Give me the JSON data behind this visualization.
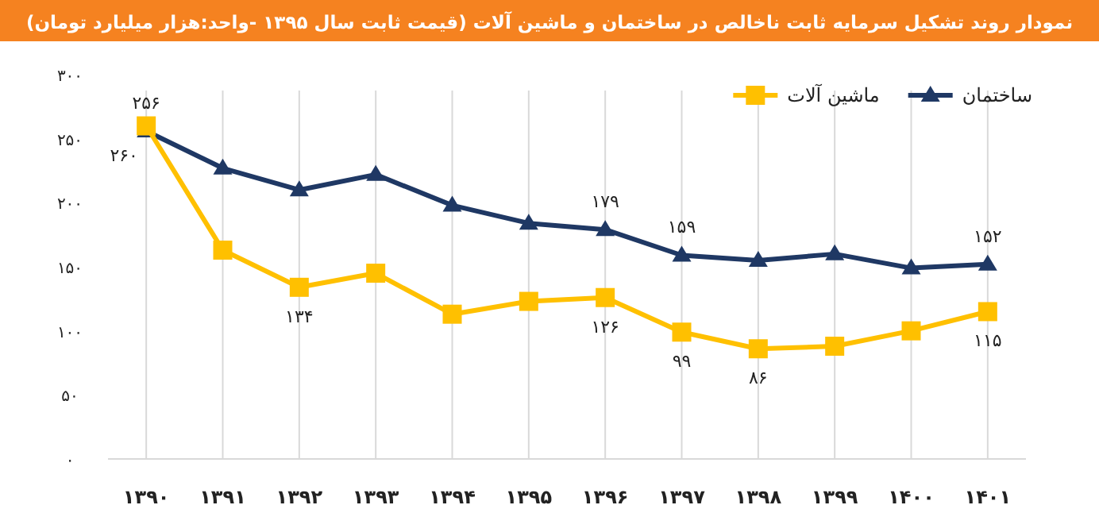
{
  "chart_data": {
    "type": "line",
    "title": "نمودار روند تشکیل سرمایه ثابت ناخالص در ساختمان و ماشین آلات (قیمت ثابت سال ۱۳۹۵ -واحد:هزار میلیارد تومان)",
    "categories": [
      "۱۳۹۰",
      "۱۳۹۱",
      "۱۳۹۲",
      "۱۳۹۳",
      "۱۳۹۴",
      "۱۳۹۵",
      "۱۳۹۶",
      "۱۳۹۷",
      "۱۳۹۸",
      "۱۳۹۹",
      "۱۴۰۰",
      "۱۴۰۱"
    ],
    "series": [
      {
        "name": "ساختمان",
        "color": "#1f3864",
        "marker": "triangle",
        "values": [
          256,
          227,
          210,
          222,
          198,
          184,
          179,
          159,
          155,
          160,
          149,
          152
        ],
        "value_labels": [
          "۲۵۶",
          null,
          null,
          null,
          null,
          null,
          "۱۷۹",
          "۱۵۹",
          null,
          null,
          null,
          "۱۵۲"
        ]
      },
      {
        "name": "ماشین آلات",
        "color": "#ffc000",
        "marker": "square",
        "values": [
          260,
          163,
          134,
          145,
          113,
          123,
          126,
          99,
          86,
          88,
          100,
          115
        ],
        "value_labels": [
          "۲۶۰",
          null,
          "۱۳۴",
          null,
          null,
          null,
          "۱۲۶",
          "۹۹",
          "۸۶",
          null,
          null,
          "۱۱۵"
        ]
      }
    ],
    "ylim": [
      0,
      300
    ],
    "yticks": [
      {
        "value": 0,
        "label": "۰"
      },
      {
        "value": 50,
        "label": "۵۰"
      },
      {
        "value": 100,
        "label": "۱۰۰"
      },
      {
        "value": 150,
        "label": "۱۵۰"
      },
      {
        "value": 200,
        "label": "۲۰۰"
      },
      {
        "value": 250,
        "label": "۲۵۰"
      },
      {
        "value": 300,
        "label": "۳۰۰"
      }
    ],
    "grid": "x",
    "legend": "top right"
  }
}
